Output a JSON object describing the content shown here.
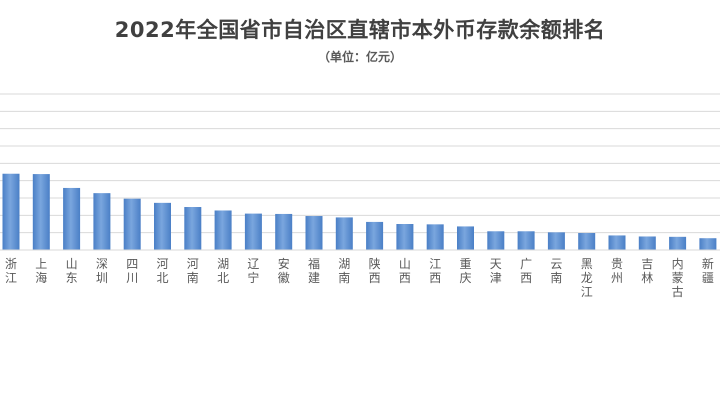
{
  "chart_data": {
    "type": "bar",
    "title": "2022年全国省市自治区直辖市本外币存款余额排名",
    "subtitle": "（单位：亿元）",
    "categories": [
      "浙江",
      "上海",
      "山东",
      "深圳",
      "四川",
      "河北",
      "河南",
      "湖北",
      "辽宁",
      "安徽",
      "福建",
      "湖南",
      "陕西",
      "山西",
      "江西",
      "重庆",
      "天津",
      "广西",
      "云南",
      "黑龙江",
      "贵州",
      "吉林",
      "内蒙古",
      "新疆"
    ],
    "values": [
      220000,
      219000,
      179000,
      164000,
      148000,
      136000,
      124000,
      114000,
      105000,
      104000,
      98000,
      94000,
      81000,
      75000,
      74000,
      68000,
      54000,
      54000,
      51000,
      49000,
      42000,
      39000,
      38000,
      34000
    ],
    "ylim": [
      0,
      450000
    ],
    "grid": true,
    "bar_color": "#5b8fd1"
  }
}
